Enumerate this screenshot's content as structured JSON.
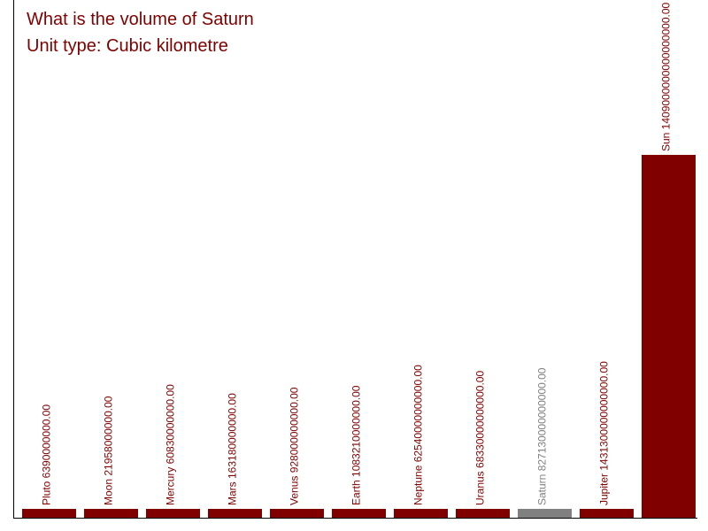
{
  "title_lines": [
    "What is the volume of Saturn",
    "Unit type: Cubic kilometre"
  ],
  "colors": {
    "bar": "#800000",
    "highlight": "#808080",
    "text": "#800000",
    "axis": "#000000"
  },
  "chart_data": {
    "type": "bar",
    "title": "What is the volume of Saturn",
    "subtitle": "Unit type: Cubic kilometre",
    "categories": [
      "Pluto",
      "Moon",
      "Mercury",
      "Mars",
      "Venus",
      "Earth",
      "Neptune",
      "Uranus",
      "Saturn",
      "Jupiter",
      "Sun"
    ],
    "values": [
      6390000000,
      21958000000,
      60830000000,
      163180000000,
      928000000000,
      1083210000000,
      62540000000000,
      68330000000000,
      827130000000000,
      1431300000000000,
      1409000000000000000
    ],
    "labels": [
      "Pluto 6390000000.00",
      "Moon 21958000000.00",
      "Mercury 60830000000.00",
      "Mars 163180000000.00",
      "Venus 928000000000.00",
      "Earth 1083210000000.00",
      "Neptune 62540000000000.00",
      "Uranus 68330000000000.00",
      "Saturn 827130000000000.00",
      "Jupiter 1431300000000000.00",
      "Sun 1409000000000000000.00"
    ],
    "highlight": "Saturn",
    "scale": "log",
    "xlabel": "",
    "ylabel": "",
    "grid": false,
    "legend": "none"
  }
}
